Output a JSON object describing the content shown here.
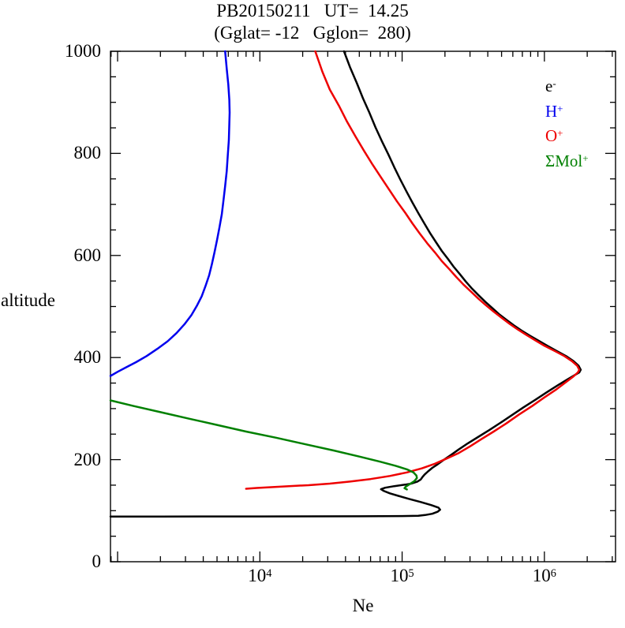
{
  "page": {
    "background": "#ffffff"
  },
  "chart_data": {
    "type": "line",
    "title": "PB20150211   UT=  14.25",
    "subtitle": "(Gglat= -12   Gglon=  280)",
    "xlabel": "Ne",
    "ylabel": "altitude",
    "grid": false,
    "legend_position": "inside-top-right",
    "axes": {
      "x": {
        "scale": "log",
        "min_exponent": 2.95,
        "max_exponent": 6.5,
        "major_tick_exponents": [
          3,
          4,
          5,
          6
        ],
        "labeled_tick_exponents": [
          4,
          5,
          6
        ],
        "label": "Ne"
      },
      "y": {
        "min": 0,
        "max": 1000,
        "major_step": 200,
        "minor_step": 50,
        "tick_labels": [
          0,
          200,
          400,
          600,
          800,
          1000
        ],
        "label": "altitude"
      }
    },
    "series": [
      {
        "id": "e-minus",
        "label_base": "e",
        "label_sup": "-",
        "color": "#000000",
        "points": [
          [
            890,
            88.4
          ],
          [
            2000,
            88.5
          ],
          [
            10000,
            88.7
          ],
          [
            50000,
            89.0
          ],
          [
            100000,
            89.5
          ],
          [
            130000,
            90.0
          ],
          [
            145000,
            91.5
          ],
          [
            163000,
            94
          ],
          [
            178000,
            98
          ],
          [
            185000,
            102
          ],
          [
            180000,
            106
          ],
          [
            160000,
            111
          ],
          [
            135000,
            117
          ],
          [
            112000,
            123
          ],
          [
            94000,
            129
          ],
          [
            82000,
            134
          ],
          [
            74000,
            139
          ],
          [
            71000,
            142
          ],
          [
            76000,
            145
          ],
          [
            88000,
            148
          ],
          [
            105000,
            151
          ],
          [
            116000,
            153
          ],
          [
            128000,
            157
          ],
          [
            135000,
            161
          ],
          [
            139000,
            166
          ],
          [
            144000,
            171
          ],
          [
            152000,
            177
          ],
          [
            163000,
            184
          ],
          [
            178000,
            191
          ],
          [
            195000,
            199
          ],
          [
            220000,
            209
          ],
          [
            250000,
            220
          ],
          [
            290000,
            232
          ],
          [
            345000,
            245
          ],
          [
            410000,
            258
          ],
          [
            490000,
            272
          ],
          [
            590000,
            287
          ],
          [
            710000,
            302
          ],
          [
            860000,
            317
          ],
          [
            1040000,
            332
          ],
          [
            1250000,
            346
          ],
          [
            1450000,
            357
          ],
          [
            1620000,
            365
          ],
          [
            1760000,
            371
          ],
          [
            1800000,
            376
          ],
          [
            1740000,
            384
          ],
          [
            1600000,
            393
          ],
          [
            1420000,
            403
          ],
          [
            1220000,
            413
          ],
          [
            1050000,
            423
          ],
          [
            910000,
            433
          ],
          [
            790000,
            443
          ],
          [
            690000,
            453
          ],
          [
            610000,
            463
          ],
          [
            540000,
            474
          ],
          [
            480000,
            485
          ],
          [
            430000,
            497
          ],
          [
            385000,
            509
          ],
          [
            345000,
            522
          ],
          [
            310000,
            535
          ],
          [
            280000,
            549
          ],
          [
            255000,
            563
          ],
          [
            230000,
            578
          ],
          [
            210000,
            593
          ],
          [
            190000,
            609
          ],
          [
            173000,
            626
          ],
          [
            157000,
            644
          ],
          [
            143000,
            663
          ],
          [
            130000,
            683
          ],
          [
            118000,
            704
          ],
          [
            107000,
            726
          ],
          [
            97000,
            749
          ],
          [
            88000,
            773
          ],
          [
            80000,
            798
          ],
          [
            72000,
            824
          ],
          [
            65000,
            851
          ],
          [
            59000,
            879
          ],
          [
            53000,
            908
          ],
          [
            48000,
            938
          ],
          [
            43000,
            969
          ],
          [
            39000,
            1000
          ]
        ]
      },
      {
        "id": "h-plus",
        "label_base": "H",
        "label_sup": "+",
        "color": "#0000ee",
        "points": [
          [
            890,
            364
          ],
          [
            1000,
            372
          ],
          [
            1150,
            381
          ],
          [
            1350,
            391
          ],
          [
            1600,
            403
          ],
          [
            1900,
            417
          ],
          [
            2250,
            432
          ],
          [
            2600,
            448
          ],
          [
            2950,
            465
          ],
          [
            3300,
            483
          ],
          [
            3600,
            501
          ],
          [
            3900,
            520
          ],
          [
            4150,
            540
          ],
          [
            4400,
            561
          ],
          [
            4600,
            583
          ],
          [
            4800,
            606
          ],
          [
            5000,
            630
          ],
          [
            5200,
            655
          ],
          [
            5400,
            681
          ],
          [
            5550,
            708
          ],
          [
            5700,
            736
          ],
          [
            5850,
            765
          ],
          [
            5950,
            795
          ],
          [
            6050,
            826
          ],
          [
            6100,
            858
          ],
          [
            6130,
            880
          ],
          [
            6100,
            905
          ],
          [
            6000,
            935
          ],
          [
            5850,
            966
          ],
          [
            5700,
            1000
          ]
        ]
      },
      {
        "id": "o-plus",
        "label_base": "O",
        "label_sup": "+",
        "color": "#ee0000",
        "points": [
          [
            8000,
            143
          ],
          [
            9500,
            144.5
          ],
          [
            12000,
            146
          ],
          [
            16000,
            148
          ],
          [
            22000,
            150
          ],
          [
            31000,
            153
          ],
          [
            43000,
            157
          ],
          [
            60000,
            162
          ],
          [
            82000,
            168
          ],
          [
            108000,
            175
          ],
          [
            138000,
            183
          ],
          [
            170000,
            192
          ],
          [
            205000,
            202
          ],
          [
            250000,
            213
          ],
          [
            300000,
            226
          ],
          [
            360000,
            240
          ],
          [
            440000,
            255
          ],
          [
            540000,
            271
          ],
          [
            660000,
            288
          ],
          [
            820000,
            305
          ],
          [
            1000000,
            322
          ],
          [
            1220000,
            338
          ],
          [
            1420000,
            352
          ],
          [
            1600000,
            363
          ],
          [
            1720000,
            371
          ],
          [
            1760000,
            376
          ],
          [
            1700000,
            384
          ],
          [
            1560000,
            393
          ],
          [
            1380000,
            403
          ],
          [
            1180000,
            413
          ],
          [
            1000000,
            423
          ],
          [
            870000,
            433
          ],
          [
            750000,
            444
          ],
          [
            650000,
            455
          ],
          [
            570000,
            466
          ],
          [
            500000,
            478
          ],
          [
            440000,
            490
          ],
          [
            390000,
            502
          ],
          [
            345000,
            515
          ],
          [
            305000,
            529
          ],
          [
            270000,
            543
          ],
          [
            240000,
            558
          ],
          [
            215000,
            573
          ],
          [
            190000,
            589
          ],
          [
            170000,
            606
          ],
          [
            150000,
            624
          ],
          [
            133000,
            643
          ],
          [
            118000,
            663
          ],
          [
            105000,
            684
          ],
          [
            92000,
            706
          ],
          [
            81000,
            729
          ],
          [
            71000,
            753
          ],
          [
            62000,
            778
          ],
          [
            54000,
            805
          ],
          [
            47000,
            833
          ],
          [
            41000,
            862
          ],
          [
            36000,
            893
          ],
          [
            31000,
            925
          ],
          [
            27500,
            960
          ],
          [
            24500,
            1000
          ]
        ]
      },
      {
        "id": "mol-plus",
        "label_base": "ΣMol",
        "label_sup": "+",
        "color": "#008000",
        "points": [
          [
            890,
            316
          ],
          [
            1300,
            305
          ],
          [
            2000,
            293
          ],
          [
            3200,
            280
          ],
          [
            5000,
            268
          ],
          [
            8000,
            255
          ],
          [
            13000,
            243
          ],
          [
            21000,
            230
          ],
          [
            33000,
            218
          ],
          [
            50000,
            206
          ],
          [
            70000,
            196
          ],
          [
            90000,
            188
          ],
          [
            108000,
            181
          ],
          [
            120000,
            175
          ],
          [
            126000,
            169
          ],
          [
            127000,
            164
          ],
          [
            122000,
            158
          ],
          [
            113000,
            152
          ],
          [
            106000,
            147
          ],
          [
            104000,
            144
          ],
          [
            108000,
            141.5
          ]
        ]
      }
    ]
  }
}
